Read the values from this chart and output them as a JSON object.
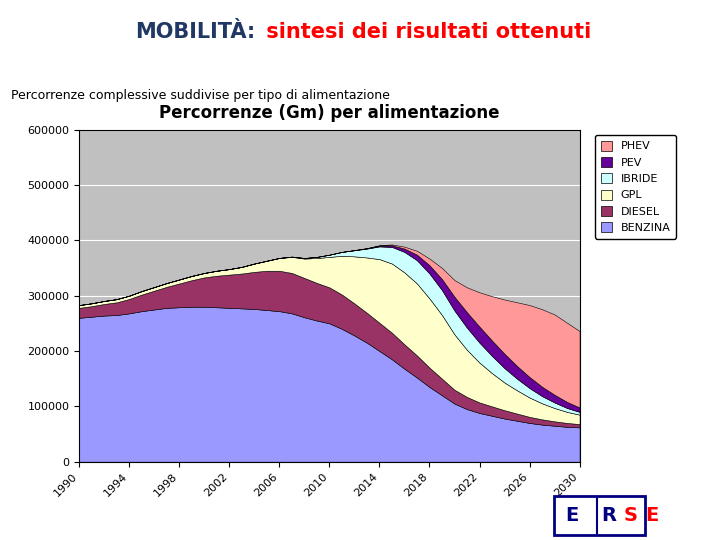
{
  "title_part1": "MOBILITÀ:",
  "title_part2": " sintesi dei risultati ottenuti",
  "subtitle": "Percorrenze complessive suddivise per tipo di alimentazione",
  "chart_title": "Percorrenze (Gm) per alimentazione",
  "years": [
    1990,
    1991,
    1992,
    1993,
    1994,
    1995,
    1996,
    1997,
    1998,
    1999,
    2000,
    2001,
    2002,
    2003,
    2004,
    2005,
    2006,
    2007,
    2008,
    2009,
    2010,
    2011,
    2012,
    2013,
    2014,
    2015,
    2016,
    2017,
    2018,
    2019,
    2020,
    2021,
    2022,
    2023,
    2024,
    2025,
    2026,
    2027,
    2028,
    2029,
    2030
  ],
  "BENZINA": [
    260000,
    262000,
    264000,
    265000,
    268000,
    272000,
    275000,
    278000,
    279000,
    280000,
    280000,
    279000,
    278000,
    277000,
    276000,
    274000,
    272000,
    268000,
    261000,
    255000,
    250000,
    240000,
    228000,
    215000,
    200000,
    185000,
    168000,
    152000,
    135000,
    120000,
    105000,
    95000,
    88000,
    83000,
    78000,
    74000,
    70000,
    67000,
    65000,
    63000,
    62000
  ],
  "DIESEL": [
    18000,
    19000,
    21000,
    23000,
    26000,
    30000,
    34000,
    38000,
    43000,
    48000,
    53000,
    57000,
    60000,
    63000,
    67000,
    71000,
    73000,
    73000,
    71000,
    68000,
    65000,
    62000,
    58000,
    54000,
    51000,
    48000,
    44000,
    40000,
    35000,
    30000,
    25000,
    22000,
    19000,
    17000,
    15000,
    13000,
    11000,
    9500,
    8000,
    7000,
    6000
  ],
  "GPL": [
    5000,
    5200,
    5400,
    5700,
    6000,
    6300,
    6500,
    6800,
    7200,
    7600,
    8000,
    9000,
    10000,
    12000,
    15000,
    18000,
    23000,
    29000,
    35000,
    45000,
    55000,
    70000,
    85000,
    100000,
    115000,
    125000,
    130000,
    130000,
    125000,
    115000,
    100000,
    85000,
    72000,
    60000,
    50000,
    42000,
    35000,
    29000,
    24000,
    20000,
    17000
  ],
  "IBRIDE": [
    0,
    0,
    0,
    0,
    0,
    0,
    0,
    0,
    0,
    0,
    0,
    0,
    0,
    0,
    0,
    100,
    200,
    500,
    1000,
    2000,
    4000,
    7000,
    11000,
    16000,
    23000,
    30000,
    37000,
    42000,
    45000,
    45000,
    43000,
    40000,
    36000,
    31000,
    26000,
    21000,
    17000,
    13000,
    10000,
    7000,
    5000
  ],
  "PEV": [
    0,
    0,
    0,
    0,
    0,
    0,
    0,
    0,
    0,
    0,
    0,
    0,
    0,
    0,
    0,
    0,
    0,
    0,
    0,
    0,
    0,
    100,
    300,
    700,
    1500,
    3000,
    6000,
    10000,
    15000,
    20000,
    25000,
    28000,
    29000,
    28000,
    26000,
    23000,
    20000,
    17000,
    14000,
    11000,
    8000
  ],
  "PHEV": [
    0,
    0,
    0,
    0,
    0,
    0,
    0,
    0,
    0,
    0,
    0,
    0,
    0,
    0,
    0,
    0,
    0,
    0,
    0,
    0,
    0,
    0,
    100,
    300,
    700,
    1500,
    3500,
    7000,
    12000,
    20000,
    30000,
    45000,
    62000,
    80000,
    98000,
    115000,
    130000,
    140000,
    145000,
    143000,
    138000
  ],
  "colors": {
    "BENZINA": "#9999FF",
    "DIESEL": "#993366",
    "GPL": "#FFFFCC",
    "IBRIDE": "#CCFFFF",
    "PEV": "#660099",
    "PHEV": "#FF9999"
  },
  "ylim": [
    0,
    600000
  ],
  "yticks": [
    0,
    100000,
    200000,
    300000,
    400000,
    500000,
    600000
  ],
  "xtick_years": [
    1990,
    1994,
    1998,
    2002,
    2006,
    2010,
    2014,
    2018,
    2022,
    2026,
    2030
  ],
  "chart_bg": "#C0C0C0",
  "title1_color": "#1F3864",
  "title2_color": "#FF0000",
  "line_color": "#1F3864"
}
